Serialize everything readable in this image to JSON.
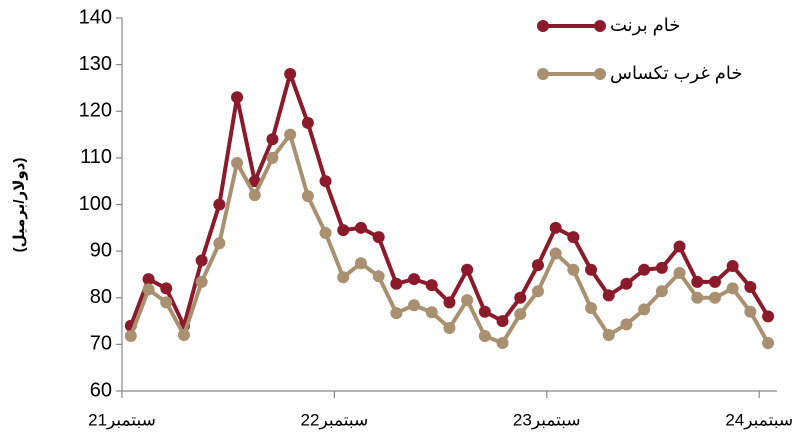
{
  "chart_data": {
    "type": "line",
    "y_label": "(دولار/برميل)",
    "categories": [
      "سبتمبر21",
      null,
      null,
      null,
      null,
      null,
      null,
      null,
      null,
      null,
      null,
      null,
      "سبتمبر22",
      null,
      null,
      null,
      null,
      null,
      null,
      null,
      null,
      null,
      null,
      null,
      "سبتمبر23",
      null,
      null,
      null,
      null,
      null,
      null,
      null,
      null,
      null,
      null,
      null,
      "سبتمبر24"
    ],
    "series": [
      {
        "name": "خام برنت",
        "color": "#8b1a2b",
        "values": [
          74,
          84,
          82,
          74,
          88,
          100,
          123,
          105,
          114,
          128,
          117.5,
          105,
          94.5,
          95,
          93,
          83,
          84,
          82.7,
          79,
          86,
          77,
          75,
          80,
          87,
          95,
          93,
          86,
          80.5,
          83,
          86,
          86.4,
          91,
          83.4,
          83.4,
          86.8,
          82.3,
          76
        ]
      },
      {
        "name": "خام غرب  تكساس",
        "color": "#a89070",
        "values": [
          71.8,
          81.8,
          79,
          72,
          83.4,
          91.7,
          108.9,
          102,
          110,
          115,
          101.8,
          93.9,
          84.4,
          87.4,
          84.6,
          76.7,
          78.4,
          76.9,
          73.5,
          79.5,
          71.8,
          70.3,
          76.5,
          81.4,
          89.5,
          86,
          77.8,
          72,
          74.3,
          77.5,
          81.4,
          85.3,
          80,
          80,
          82,
          77,
          70.3
        ]
      }
    ],
    "ylim": [
      60,
      140
    ],
    "yticks": [
      60,
      70,
      80,
      90,
      100,
      110,
      120,
      130,
      140
    ],
    "grid": false,
    "legend": "top-right"
  }
}
